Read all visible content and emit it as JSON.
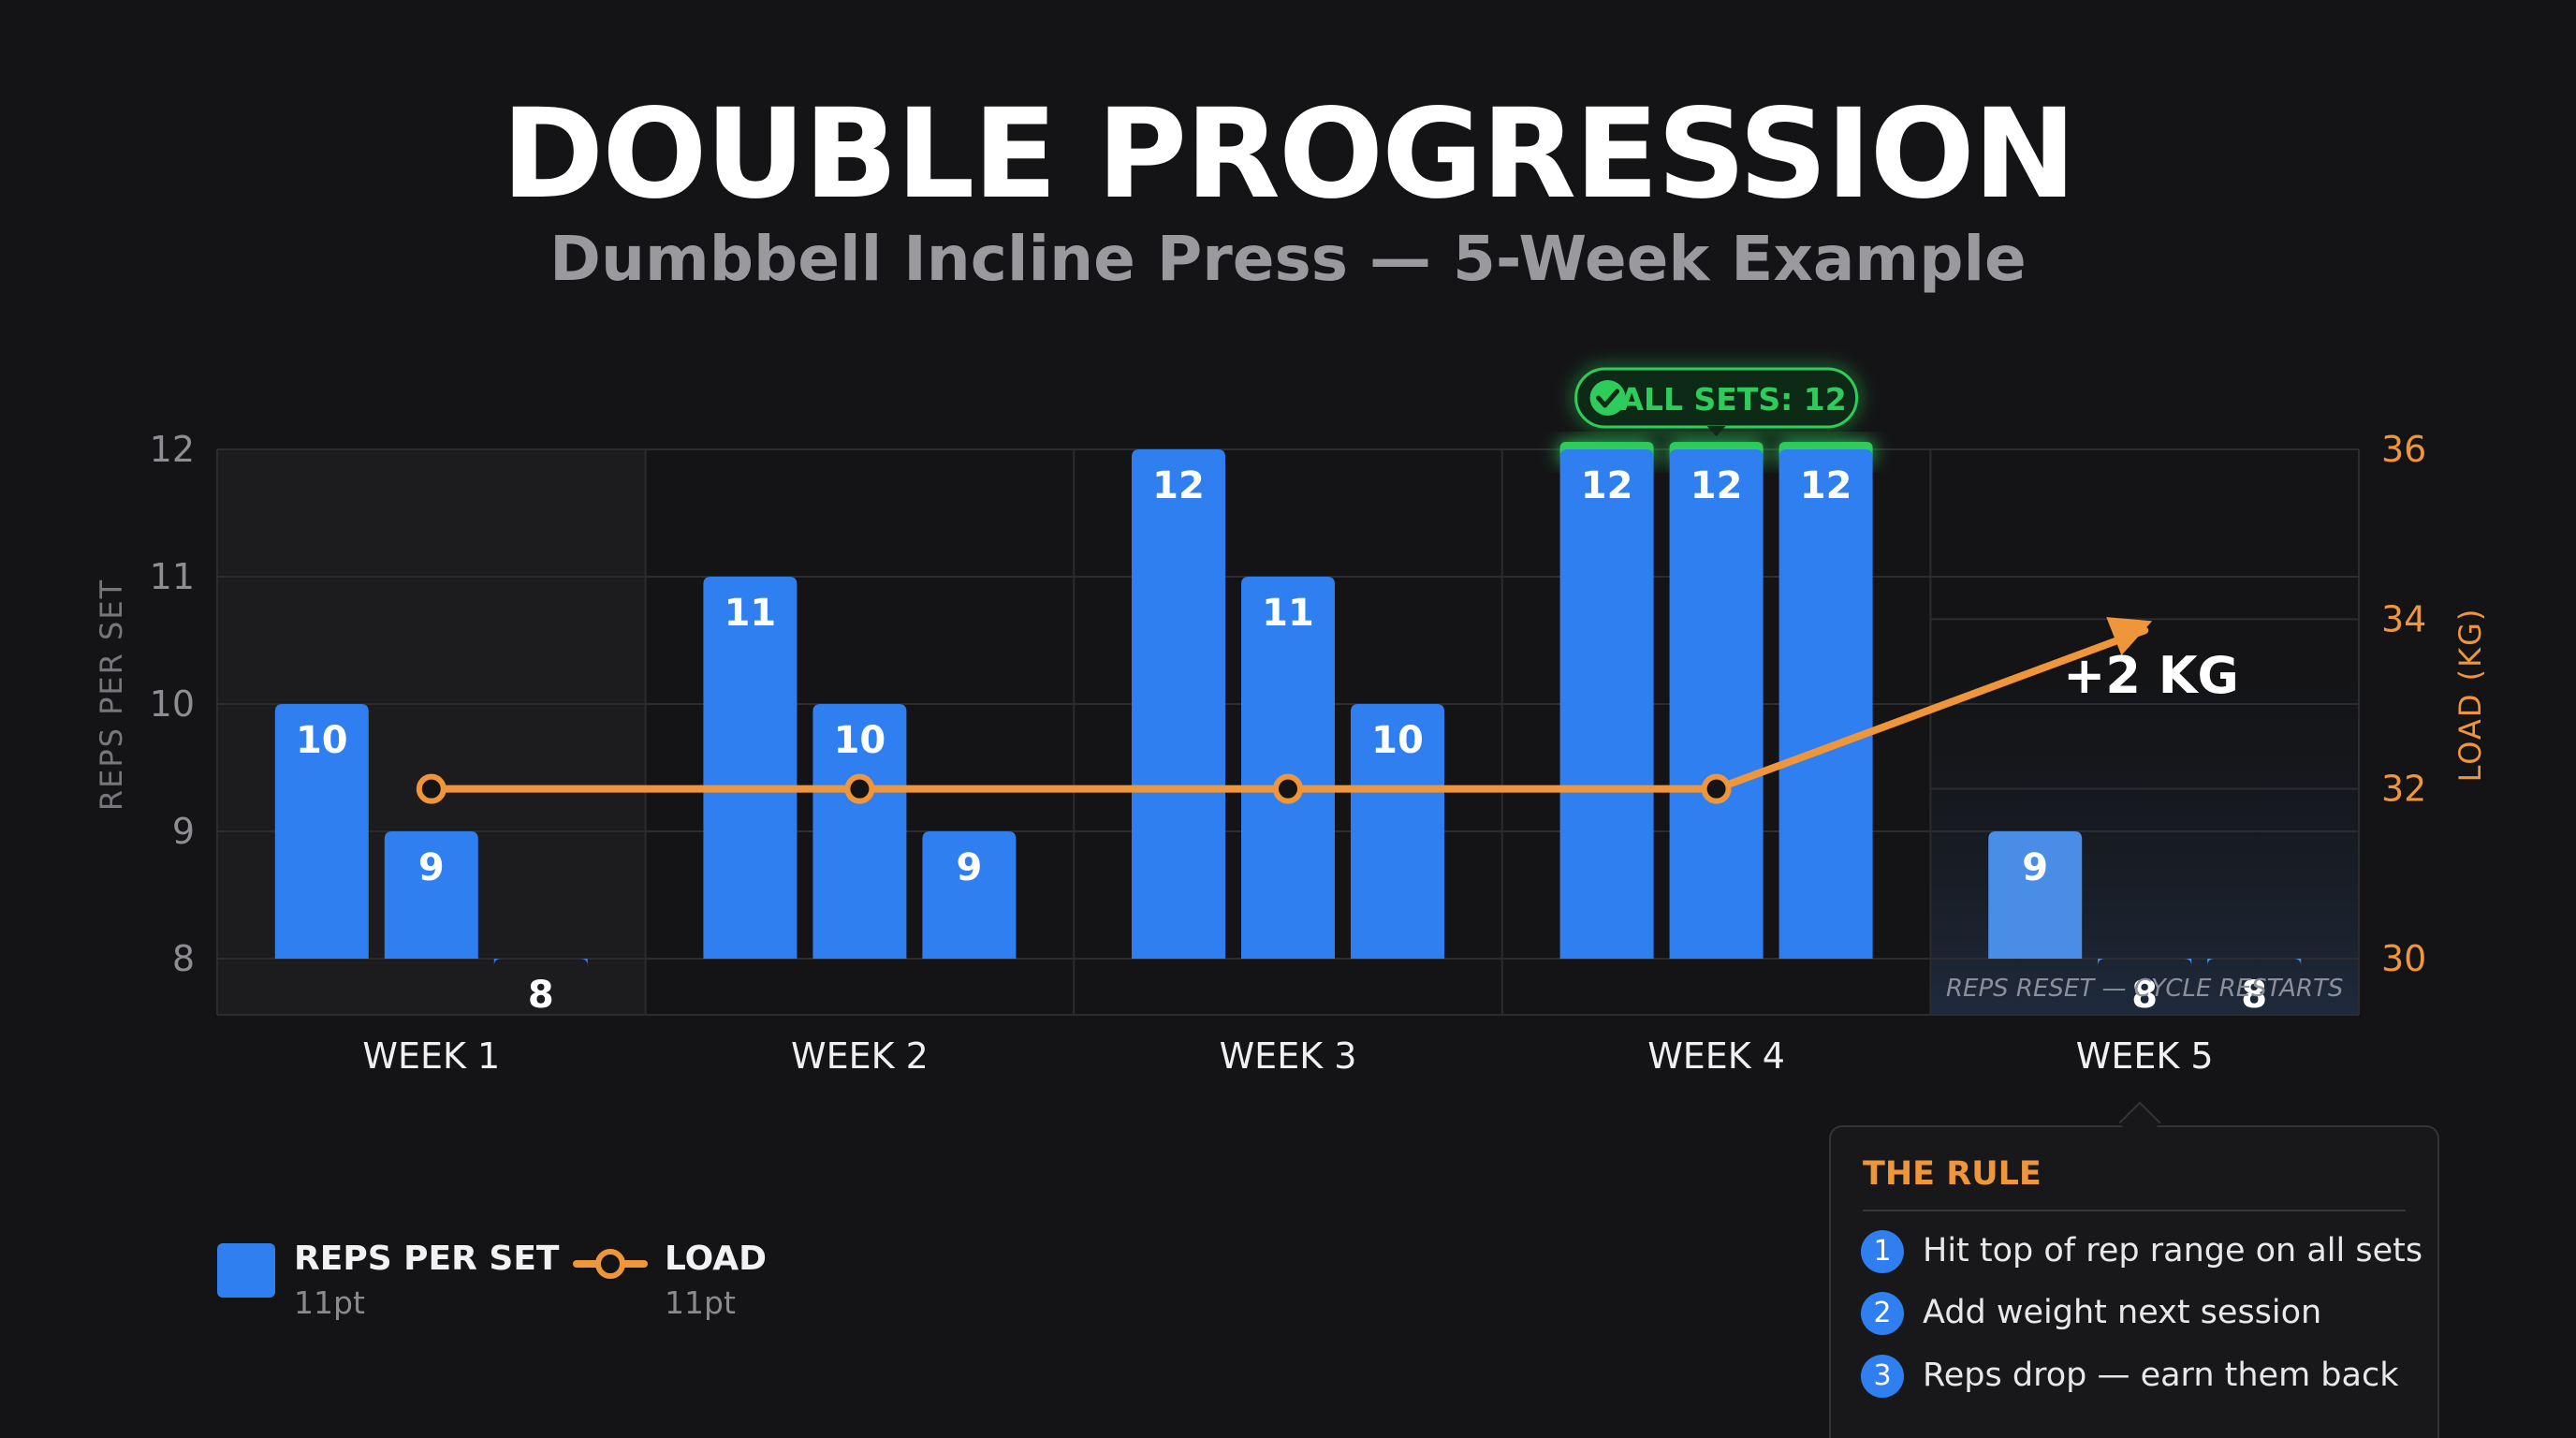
{
  "header": {
    "title": "DOUBLE PROGRESSION",
    "subtitle": "Dumbbell Incline Press — 5-Week Example"
  },
  "chart_data": {
    "type": "bar",
    "categories": [
      "WEEK 1",
      "WEEK 2",
      "WEEK 3",
      "WEEK 4",
      "WEEK 5"
    ],
    "series": [
      {
        "name": "REPS PER SET",
        "type": "bar",
        "axis": "left",
        "values": [
          [
            10,
            9,
            8
          ],
          [
            11,
            10,
            9
          ],
          [
            12,
            11,
            10
          ],
          [
            12,
            12,
            12
          ],
          [
            9,
            8,
            8
          ]
        ],
        "color": "#2f7ff0"
      },
      {
        "name": "LOAD",
        "type": "line",
        "axis": "right",
        "values": [
          32,
          32,
          32,
          32,
          34
        ],
        "color": "#f0963a"
      }
    ],
    "ylabel": "REPS PER SET",
    "ylim": [
      8,
      12
    ],
    "yticks": [
      8,
      9,
      10,
      11,
      12
    ],
    "y2label": "LOAD (KG)",
    "y2lim": [
      30,
      36
    ],
    "y2ticks": [
      30,
      32,
      34,
      36
    ],
    "grid": true,
    "legend_position": "bottom-left",
    "annotations": {
      "badge": "ALL SETS: 12",
      "increase": "+2 KG",
      "reset_note": "REPS RESET — CYCLE RESTARTS"
    },
    "colors": {
      "bar": "#2f7ff0",
      "bar_reset": "#4a8de6",
      "line": "#f0963a",
      "success": "#2ecc5a"
    }
  },
  "legend": {
    "items": [
      {
        "label": "REPS PER SET",
        "sub": "11pt"
      },
      {
        "label": "LOAD",
        "sub": "11pt"
      }
    ]
  },
  "rule": {
    "title": "THE RULE",
    "steps": [
      {
        "num": "1",
        "text": "Hit top of rep range on all sets"
      },
      {
        "num": "2",
        "text": "Add weight next session"
      },
      {
        "num": "3",
        "text": "Reps drop — earn them back"
      }
    ]
  }
}
